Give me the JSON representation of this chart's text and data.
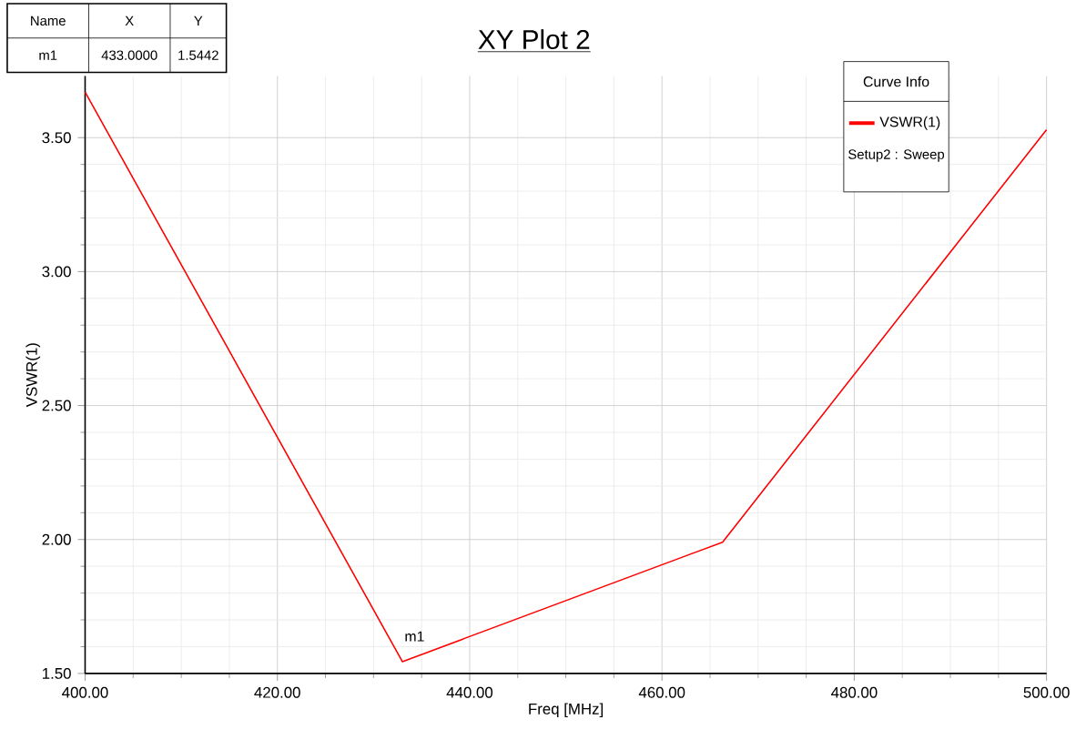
{
  "chart_data": {
    "type": "line",
    "title": "XY Plot 2",
    "xlabel": "Freq [MHz]",
    "ylabel": "VSWR(1)",
    "legend_title": "Curve Info",
    "x": [
      400,
      433,
      466.3,
      500
    ],
    "series": [
      {
        "name": "VSWR(1)",
        "color": "#ff0000",
        "values": [
          3.67,
          1.5442,
          1.99,
          3.53
        ]
      }
    ],
    "xlim": [
      400,
      500
    ],
    "ylim": [
      1.5,
      3.73
    ],
    "xticks": [
      {
        "value": 400,
        "label": "400.00"
      },
      {
        "value": 420,
        "label": "420.00"
      },
      {
        "value": 440,
        "label": "440.00"
      },
      {
        "value": 460,
        "label": "460.00"
      },
      {
        "value": 480,
        "label": "480.00"
      },
      {
        "value": 500,
        "label": "500.00"
      }
    ],
    "yticks": [
      {
        "value": 1.5,
        "label": "1.50"
      },
      {
        "value": 2,
        "label": "2.00"
      },
      {
        "value": 2.5,
        "label": "2.50"
      },
      {
        "value": 3,
        "label": "3.00"
      },
      {
        "value": 3.5,
        "label": "3.50"
      }
    ],
    "grid": true,
    "legend": "top right",
    "annotations": [
      {
        "text": "m1",
        "x": 433,
        "y": 1.5442
      },
      "Setup2 : Sweep",
      "Name",
      "X",
      "Y",
      "m1",
      "433.0000",
      "1.5442"
    ]
  }
}
